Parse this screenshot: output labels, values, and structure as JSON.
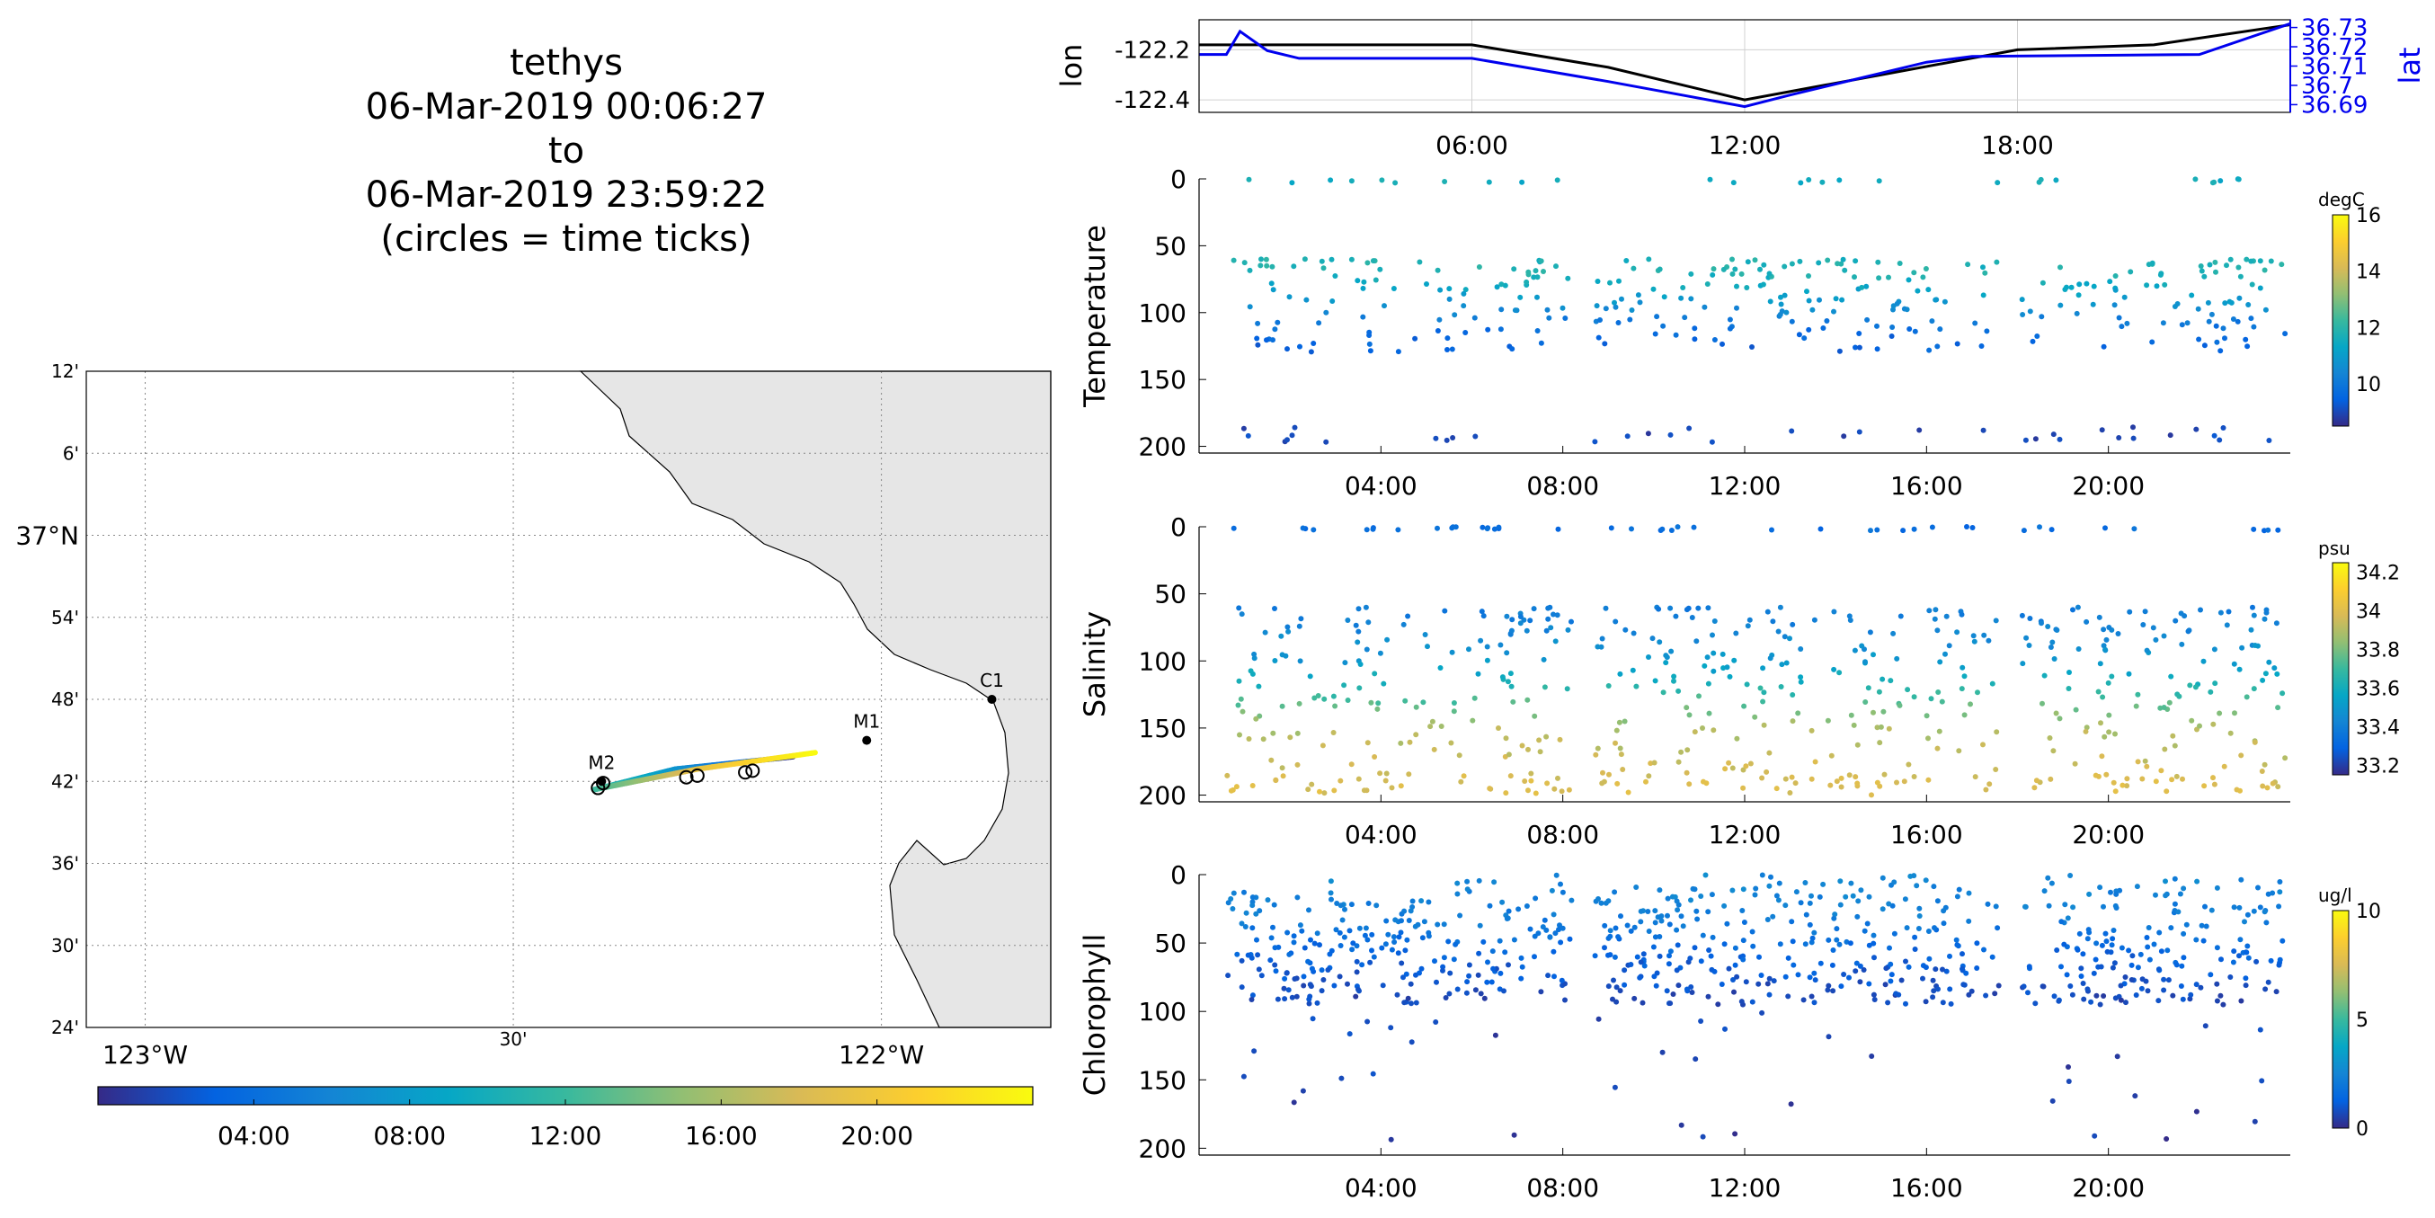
{
  "header": {
    "lines": [
      "tethys",
      "06-Mar-2019 00:06:27",
      "to",
      "06-Mar-2019 23:59:22",
      "(circles = time ticks)"
    ]
  },
  "colors": {
    "track_blue": "#0000ee",
    "land": "#e6e6e6",
    "parula": [
      "#352a87",
      "#0363e1",
      "#1485d4",
      "#06a7c6",
      "#38b99e",
      "#92bf73",
      "#d9ba56",
      "#fcce2e",
      "#f9fb0e"
    ]
  },
  "chart_data": [
    {
      "id": "map",
      "type": "scatter",
      "title": "",
      "lat_ticks": [
        "12'",
        "6'",
        "37°N",
        "54'",
        "48'",
        "42'",
        "36'",
        "30'",
        "24'"
      ],
      "lon_ticks": [
        "123°W",
        "30'",
        "122°W"
      ],
      "xlim": [
        -123.08,
        -121.77
      ],
      "ylim": [
        36.4,
        37.2
      ],
      "grid": true,
      "stations": [
        {
          "name": "M2",
          "lon": -122.38,
          "lat": 36.7
        },
        {
          "name": "M1",
          "lon": -122.02,
          "lat": 36.75
        },
        {
          "name": "C1",
          "lon": -121.85,
          "lat": 36.8
        }
      ],
      "track": [
        {
          "t": 0.0,
          "lon": -122.12,
          "lat": 36.73
        },
        {
          "t": 0.3,
          "lon": -122.28,
          "lat": 36.715
        },
        {
          "t": 0.5,
          "lon": -122.39,
          "lat": 36.69
        },
        {
          "t": 0.8,
          "lon": -122.25,
          "lat": 36.715
        },
        {
          "t": 1.0,
          "lon": -122.09,
          "lat": 36.735
        }
      ],
      "time_ticks": [
        {
          "lon": -122.385,
          "lat": 36.692
        },
        {
          "lon": -122.378,
          "lat": 36.698
        },
        {
          "lon": -122.265,
          "lat": 36.705
        },
        {
          "lon": -122.25,
          "lat": 36.707
        },
        {
          "lon": -122.185,
          "lat": 36.711
        },
        {
          "lon": -122.175,
          "lat": 36.713
        }
      ],
      "colorbar_ticks": [
        "04:00",
        "08:00",
        "12:00",
        "16:00",
        "20:00"
      ]
    },
    {
      "id": "lonlat",
      "type": "line",
      "ylabel": "lon",
      "ylabel_right": "lat",
      "x_ticks": [
        "06:00",
        "12:00",
        "18:00"
      ],
      "y_ticks": [
        "-122.2",
        "-122.4"
      ],
      "y2_ticks": [
        "36.73",
        "36.72",
        "36.71",
        "36.7",
        "36.69"
      ],
      "ylim": [
        -122.45,
        -122.08
      ],
      "y2lim": [
        36.686,
        36.734
      ],
      "grid": true,
      "series": [
        {
          "name": "",
          "color": "#000000",
          "t": [
            0,
            6,
            9,
            12,
            15,
            18,
            21,
            24
          ],
          "values": [
            -122.18,
            -122.18,
            -122.27,
            -122.4,
            -122.3,
            -122.2,
            -122.18,
            -122.1
          ]
        },
        {
          "name": "",
          "color": "#0000ee",
          "axis": "right",
          "t": [
            0,
            0.6,
            0.9,
            1.5,
            2.2,
            4.5,
            6.0,
            9.0,
            12.0,
            13.0,
            16.0,
            17.0,
            22.0,
            24.0
          ],
          "values": [
            36.716,
            36.716,
            36.728,
            36.718,
            36.714,
            36.714,
            36.714,
            36.702,
            36.689,
            36.695,
            36.712,
            36.715,
            36.716,
            36.732
          ]
        }
      ]
    },
    {
      "id": "temperature",
      "type": "scatter",
      "ylabel": "Temperature",
      "colorbar_label": "degC",
      "colorbar_ticks": [
        "16",
        "14",
        "12",
        "10"
      ],
      "clim": [
        8.5,
        16
      ],
      "x_ticks": [
        "04:00",
        "08:00",
        "12:00",
        "16:00",
        "20:00"
      ],
      "y_ticks": [
        "0",
        "50",
        "100",
        "150",
        "200"
      ],
      "ylim": [
        0,
        205
      ],
      "profiles": {
        "start": 0.6,
        "end": 23.9,
        "gaps": [
          [
            8.2,
            8.7
          ],
          [
            17.6,
            18.1
          ]
        ]
      },
      "depth_layers": [
        {
          "depth": 0,
          "value": 11.5
        },
        {
          "depth": 70,
          "value": 11.8
        },
        {
          "depth": 85,
          "value": 11.2
        },
        {
          "depth": 100,
          "value": 10.4
        },
        {
          "depth": 115,
          "value": 9.6
        },
        {
          "depth": 190,
          "value": 9.0
        }
      ]
    },
    {
      "id": "salinity",
      "type": "scatter",
      "ylabel": "Salinity",
      "colorbar_label": "psu",
      "colorbar_ticks": [
        "34.2",
        "34",
        "33.8",
        "33.6",
        "33.4",
        "33.2"
      ],
      "clim": [
        33.15,
        34.25
      ],
      "x_ticks": [
        "04:00",
        "08:00",
        "12:00",
        "16:00",
        "20:00"
      ],
      "y_ticks": [
        "0",
        "50",
        "100",
        "150",
        "200"
      ],
      "ylim": [
        0,
        205
      ],
      "profiles": {
        "start": 0.6,
        "end": 23.9,
        "gaps": [
          [
            8.2,
            8.7
          ],
          [
            17.6,
            18.1
          ]
        ]
      },
      "depth_layers": [
        {
          "depth": 0,
          "value": 33.33
        },
        {
          "depth": 70,
          "value": 33.4
        },
        {
          "depth": 100,
          "value": 33.5
        },
        {
          "depth": 120,
          "value": 33.65
        },
        {
          "depth": 150,
          "value": 33.9
        },
        {
          "depth": 200,
          "value": 34.0
        }
      ]
    },
    {
      "id": "chlorophyll",
      "type": "scatter",
      "ylabel": "Chlorophyll",
      "colorbar_label": "ug/l",
      "colorbar_ticks": [
        "10",
        "5",
        "0"
      ],
      "clim": [
        0,
        10
      ],
      "x_ticks": [
        "04:00",
        "08:00",
        "12:00",
        "16:00",
        "20:00"
      ],
      "y_ticks": [
        "0",
        "50",
        "100",
        "150",
        "200"
      ],
      "ylim": [
        0,
        205
      ],
      "profiles": {
        "start": 0.6,
        "end": 23.9,
        "gaps": [
          [
            8.2,
            8.7
          ],
          [
            17.6,
            18.1
          ]
        ]
      },
      "depth_layers": [
        {
          "depth": 0,
          "value": 2.5
        },
        {
          "depth": 30,
          "value": 2.2
        },
        {
          "depth": 60,
          "value": 1.3
        },
        {
          "depth": 90,
          "value": 0.7
        },
        {
          "depth": 200,
          "value": 0.4
        }
      ]
    }
  ]
}
